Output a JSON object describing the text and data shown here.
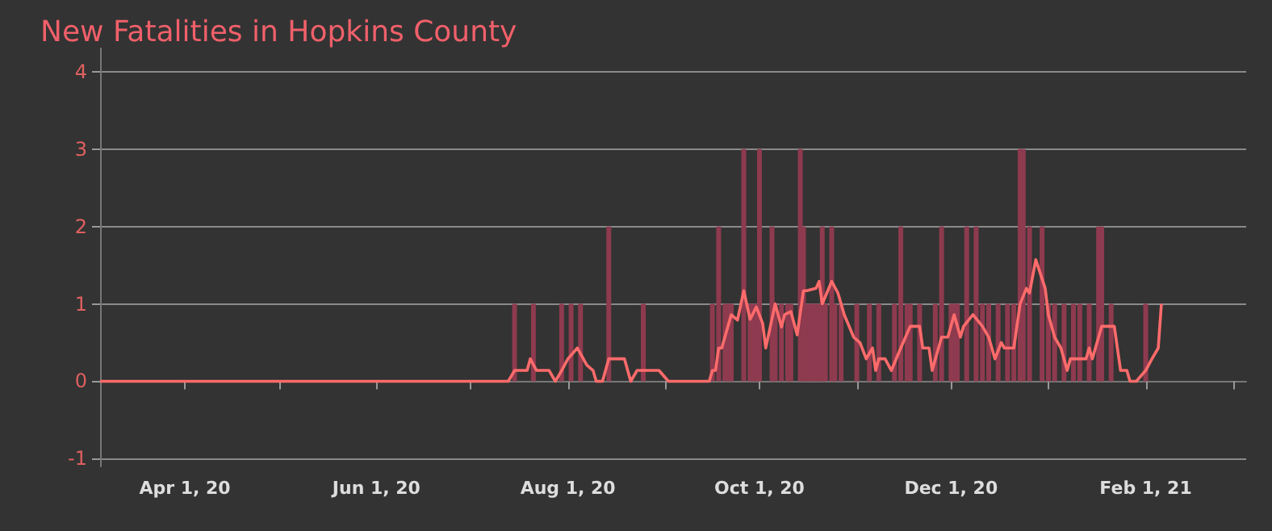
{
  "chart_data": {
    "type": "bar",
    "title": "New Fatalities in Hopkins County",
    "xlim": [
      "2020-03-05",
      "2021-03-05"
    ],
    "xticks": [
      {
        "value": "2020-04-01",
        "label": "Apr 1, 20"
      },
      {
        "value": "2020-05-01",
        "label": null
      },
      {
        "value": "2020-06-01",
        "label": "Jun 1, 20"
      },
      {
        "value": "2020-07-01",
        "label": null
      },
      {
        "value": "2020-08-01",
        "label": "Aug 1, 20"
      },
      {
        "value": "2020-09-01",
        "label": null
      },
      {
        "value": "2020-10-01",
        "label": "Oct 1, 20"
      },
      {
        "value": "2020-11-01",
        "label": null
      },
      {
        "value": "2020-12-01",
        "label": "Dec 1, 20"
      },
      {
        "value": "2021-01-01",
        "label": null
      },
      {
        "value": "2021-02-01",
        "label": "Feb 1, 21"
      },
      {
        "value": "2021-03-01",
        "label": null
      }
    ],
    "ylim": [
      -1.1,
      4.3
    ],
    "yticks": [
      -1,
      0,
      1,
      2,
      3,
      4
    ],
    "grid": "y",
    "series": [
      {
        "color": "#8e3a4f",
        "x": [
          "2020-07-15",
          "2020-07-21",
          "2020-07-30",
          "2020-08-02",
          "2020-08-05",
          "2020-08-14",
          "2020-08-25",
          "2020-09-16",
          "2020-09-18",
          "2020-09-20",
          "2020-09-21",
          "2020-09-22",
          "2020-09-26",
          "2020-09-28",
          "2020-09-29",
          "2020-09-30",
          "2020-10-01",
          "2020-10-05",
          "2020-10-06",
          "2020-10-08",
          "2020-10-10",
          "2020-10-11",
          "2020-10-14",
          "2020-10-15",
          "2020-10-16",
          "2020-10-17",
          "2020-10-18",
          "2020-10-19",
          "2020-10-20",
          "2020-10-21",
          "2020-10-22",
          "2020-10-24",
          "2020-10-25",
          "2020-10-27",
          "2020-11-01",
          "2020-11-05",
          "2020-11-08",
          "2020-11-13",
          "2020-11-15",
          "2020-11-17",
          "2020-11-18",
          "2020-11-21",
          "2020-11-26",
          "2020-11-28",
          "2020-12-01",
          "2020-12-02",
          "2020-12-03",
          "2020-12-06",
          "2020-12-09",
          "2020-12-11",
          "2020-12-13",
          "2020-12-16",
          "2020-12-19",
          "2020-12-21",
          "2020-12-23",
          "2020-12-24",
          "2020-12-26",
          "2020-12-30",
          "2021-01-01",
          "2021-01-03",
          "2021-01-06",
          "2021-01-09",
          "2021-01-11",
          "2021-01-14",
          "2021-01-17",
          "2021-01-18",
          "2021-01-21",
          "2021-02-01"
        ],
        "values": [
          1,
          1,
          1,
          1,
          1,
          2,
          1,
          1,
          2,
          1,
          1,
          1,
          3,
          1,
          1,
          1,
          3,
          2,
          1,
          1,
          1,
          1,
          3,
          2,
          1,
          1,
          1,
          1,
          1,
          2,
          1,
          2,
          1,
          1,
          1,
          1,
          1,
          1,
          2,
          1,
          1,
          1,
          1,
          2,
          1,
          1,
          1,
          2,
          2,
          1,
          1,
          1,
          1,
          1,
          3,
          3,
          2,
          2,
          1,
          1,
          1,
          1,
          1,
          1,
          2,
          2,
          1,
          1
        ]
      },
      {
        "type": "line",
        "color": "#ff6b6b",
        "marker": "none",
        "x": [
          "2020-03-05",
          "2020-07-13",
          "2020-07-15",
          "2020-07-19",
          "2020-07-20",
          "2020-07-22",
          "2020-07-26",
          "2020-07-28",
          "2020-07-30",
          "2020-08-01",
          "2020-08-04",
          "2020-08-07",
          "2020-08-09",
          "2020-08-10",
          "2020-08-12",
          "2020-08-14",
          "2020-08-19",
          "2020-08-21",
          "2020-08-23",
          "2020-08-30",
          "2020-09-02",
          "2020-09-15",
          "2020-09-16",
          "2020-09-17",
          "2020-09-18",
          "2020-09-19",
          "2020-09-22",
          "2020-09-24",
          "2020-09-26",
          "2020-09-28",
          "2020-09-30",
          "2020-10-02",
          "2020-10-03",
          "2020-10-06",
          "2020-10-08",
          "2020-10-09",
          "2020-10-11",
          "2020-10-13",
          "2020-10-15",
          "2020-10-16",
          "2020-10-19",
          "2020-10-20",
          "2020-10-21",
          "2020-10-24",
          "2020-10-26",
          "2020-10-28",
          "2020-10-31",
          "2020-11-02",
          "2020-11-04",
          "2020-11-06",
          "2020-11-07",
          "2020-11-08",
          "2020-11-10",
          "2020-11-12",
          "2020-11-15",
          "2020-11-18",
          "2020-11-21",
          "2020-11-22",
          "2020-11-24",
          "2020-11-25",
          "2020-11-28",
          "2020-11-30",
          "2020-12-02",
          "2020-12-04",
          "2020-12-05",
          "2020-12-08",
          "2020-12-11",
          "2020-12-13",
          "2020-12-15",
          "2020-12-17",
          "2020-12-18",
          "2020-12-21",
          "2020-12-23",
          "2020-12-25",
          "2020-12-26",
          "2020-12-28",
          "2020-12-31",
          "2021-01-01",
          "2021-01-03",
          "2021-01-05",
          "2021-01-07",
          "2021-01-08",
          "2021-01-10",
          "2021-01-13",
          "2021-01-14",
          "2021-01-15",
          "2021-01-18",
          "2021-01-22",
          "2021-01-24",
          "2021-01-26",
          "2021-01-27",
          "2021-01-29",
          "2021-02-01",
          "2021-02-03",
          "2021-02-05",
          "2021-02-06"
        ],
        "values": [
          0,
          0,
          0.14,
          0.14,
          0.29,
          0.14,
          0.14,
          0,
          0.14,
          0.29,
          0.43,
          0.21,
          0.14,
          0,
          0,
          0.29,
          0.29,
          0,
          0.14,
          0.14,
          0,
          0,
          0.14,
          0.14,
          0.43,
          0.43,
          0.86,
          0.79,
          1.17,
          0.8,
          0.96,
          0.75,
          0.43,
          1.0,
          0.7,
          0.86,
          0.9,
          0.6,
          1.17,
          1.17,
          1.2,
          1.29,
          1.0,
          1.29,
          1.14,
          0.86,
          0.57,
          0.5,
          0.29,
          0.43,
          0.14,
          0.29,
          0.29,
          0.14,
          0.43,
          0.71,
          0.71,
          0.43,
          0.43,
          0.14,
          0.57,
          0.57,
          0.86,
          0.57,
          0.71,
          0.86,
          0.71,
          0.57,
          0.29,
          0.5,
          0.43,
          0.43,
          1.0,
          1.2,
          1.14,
          1.57,
          1.2,
          0.86,
          0.57,
          0.43,
          0.14,
          0.29,
          0.29,
          0.29,
          0.43,
          0.29,
          0.71,
          0.71,
          0.14,
          0.14,
          0,
          0,
          0.14,
          0.29,
          0.43,
          1.0
        ]
      }
    ]
  }
}
